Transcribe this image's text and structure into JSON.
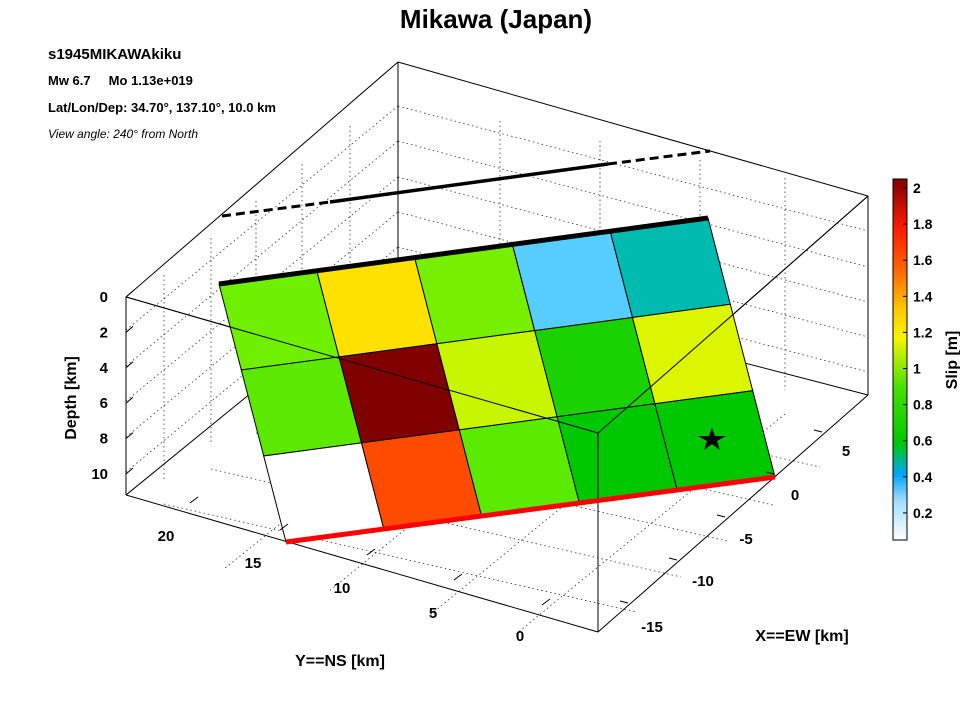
{
  "header": {
    "title": "Mikawa (Japan)",
    "event_id": "s1945MIKAWAkiku",
    "magnitude_line": "Mw 6.7     Mo 1.13e+019",
    "location_line": "Lat/Lon/Dep: 34.70°, 137.10°, 10.0 km",
    "view_line": "View angle: 240° from North"
  },
  "chart_data": {
    "type": "heatmap",
    "title": "Mikawa (Japan)",
    "xlabel": "X==EW [km]",
    "ylabel": "Y==NS [km]",
    "zlabel": "Depth [km]",
    "colorbar_label": "Slip [m]",
    "x_ticks": [
      "5",
      "0",
      "-5",
      "-10",
      "-15"
    ],
    "y_ticks": [
      "20",
      "15",
      "10",
      "5",
      "0"
    ],
    "depth_ticks": [
      "0",
      "2",
      "4",
      "6",
      "8",
      "10"
    ],
    "colorbar_ticks": [
      "2",
      "1.8",
      "1.6",
      "1.4",
      "1.2",
      "1",
      "0.8",
      "0.6",
      "0.4",
      "0.2"
    ],
    "colorbar_range": [
      0.05,
      2.05
    ],
    "colormap": [
      "#ffffff",
      "#56ccff",
      "#00c800",
      "#ffff00",
      "#ff6600",
      "#ff0000",
      "#800000"
    ],
    "grid": true,
    "view_angle_deg": 240,
    "slip_grid_columns": 5,
    "slip_grid_rows": 3,
    "slip_values": [
      [
        0.75,
        1.15,
        0.8,
        0.4,
        0.55
      ],
      [
        0.8,
        2.05,
        1.0,
        0.7,
        1.05
      ],
      [
        0.05,
        1.55,
        0.8,
        0.65,
        0.65
      ]
    ],
    "cell_colors": [
      [
        "#6ef000",
        "#ffe100",
        "#76f000",
        "#56ccff",
        "#00bcb0"
      ],
      [
        "#5de800",
        "#800000",
        "#c8f500",
        "#19d200",
        "#dcf500"
      ],
      [
        "#ffffff",
        "#ff4b00",
        "#5aeb00",
        "#00c800",
        "#00c800"
      ]
    ],
    "fault_top_edge": "black",
    "fault_bottom_edge": "red",
    "hypocenter_marker": "star",
    "colors": {
      "top_edge": "#000000",
      "bottom_edge": "#ff0000",
      "grid": "#000000"
    }
  }
}
